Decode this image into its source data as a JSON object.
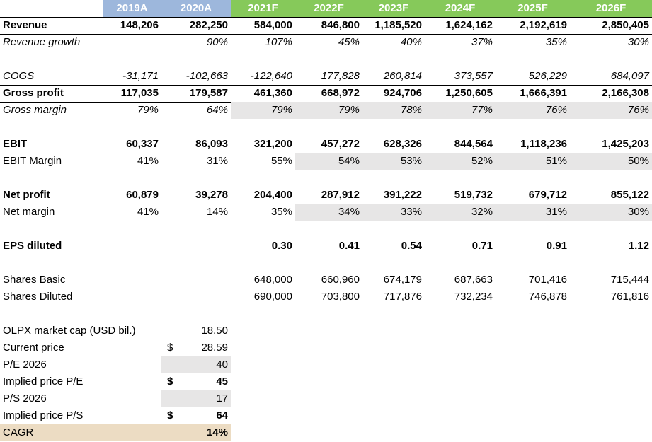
{
  "table": {
    "columns": [
      "2019A",
      "2020A",
      "2021F",
      "2022F",
      "2023F",
      "2024F",
      "2025F",
      "2026F"
    ],
    "rows": [
      {
        "label": "Revenue",
        "values": [
          "148,206",
          "282,250",
          "584,000",
          "846,800",
          "1,185,520",
          "1,624,162",
          "2,192,619",
          "2,850,405"
        ]
      },
      {
        "label": "Revenue growth",
        "values": [
          null,
          "90%",
          "107%",
          "45%",
          "40%",
          "37%",
          "35%",
          "30%"
        ]
      },
      {
        "label": "COGS",
        "values": [
          "-31,171",
          "-102,663",
          "-122,640",
          "177,828",
          "260,814",
          "373,557",
          "526,229",
          "684,097"
        ]
      },
      {
        "label": "Gross profit",
        "values": [
          "117,035",
          "179,587",
          "461,360",
          "668,972",
          "924,706",
          "1,250,605",
          "1,666,391",
          "2,166,308"
        ]
      },
      {
        "label": "Gross margin",
        "values": [
          "79%",
          "64%",
          "79%",
          "79%",
          "78%",
          "77%",
          "76%",
          "76%"
        ]
      },
      {
        "label": "EBIT",
        "values": [
          "60,337",
          "86,093",
          "321,200",
          "457,272",
          "628,326",
          "844,564",
          "1,118,236",
          "1,425,203"
        ]
      },
      {
        "label": "EBIT Margin",
        "values": [
          "41%",
          "31%",
          "55%",
          "54%",
          "53%",
          "52%",
          "51%",
          "50%"
        ]
      },
      {
        "label": "Net profit",
        "values": [
          "60,879",
          "39,278",
          "204,400",
          "287,912",
          "391,222",
          "519,732",
          "679,712",
          "855,122"
        ]
      },
      {
        "label": "Net margin",
        "values": [
          "41%",
          "14%",
          "35%",
          "34%",
          "33%",
          "32%",
          "31%",
          "30%"
        ]
      },
      {
        "label": "EPS diluted",
        "values": [
          null,
          null,
          "0.30",
          "0.41",
          "0.54",
          "0.71",
          "0.91",
          "1.12"
        ]
      },
      {
        "label": "Shares Basic",
        "values": [
          null,
          null,
          "648,000",
          "660,960",
          "674,179",
          "687,663",
          "701,416",
          "715,444"
        ]
      },
      {
        "label": "Shares Diluted",
        "values": [
          null,
          null,
          "690,000",
          "703,800",
          "717,876",
          "732,234",
          "746,878",
          "761,816"
        ]
      }
    ]
  },
  "valuation": [
    {
      "label": "OLPX market cap (USD bil.)",
      "value": "18.50"
    },
    {
      "label": "Current price",
      "currency": "$",
      "value": "28.59"
    },
    {
      "label": "P/E 2026",
      "value": "40"
    },
    {
      "label": "Implied price P/E",
      "currency": "$",
      "value": "45"
    },
    {
      "label": "P/S 2026",
      "value": "17"
    },
    {
      "label": "Implied price P/S",
      "currency": "$",
      "value": "64"
    },
    {
      "label": "CAGR",
      "value": "14%"
    }
  ]
}
